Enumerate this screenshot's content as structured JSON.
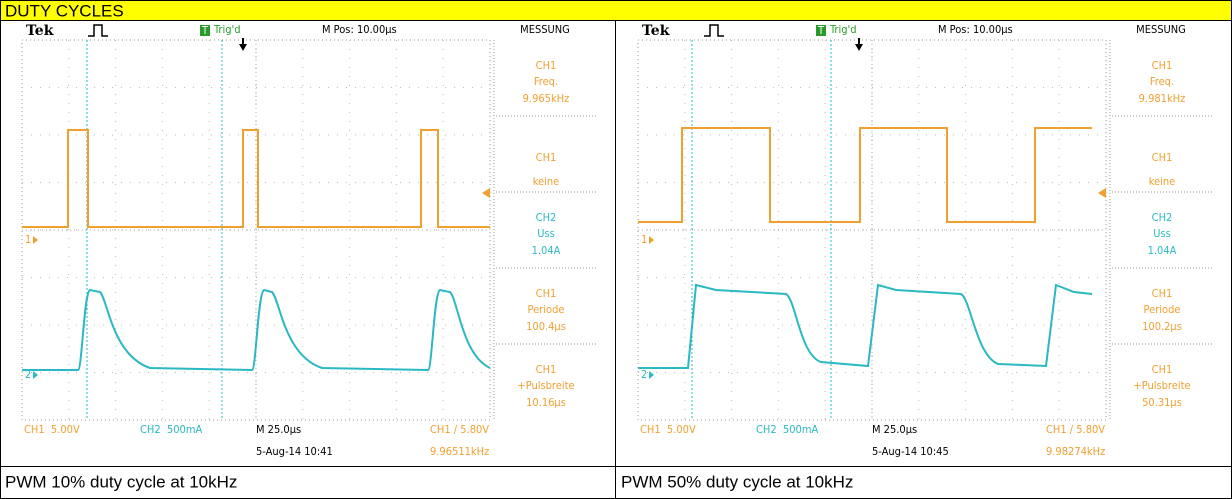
{
  "header": {
    "title": "DUTY CYCLES"
  },
  "panels": [
    {
      "scope": {
        "brand": "Tek",
        "trigger_icon": "T",
        "trigger_status": "Trig'd",
        "position": "M Pos: 10.00µs",
        "menu": "MESSUNG",
        "ch1_marker": "1",
        "ch2_marker": "2",
        "measurements": [
          {
            "channel": "CH1",
            "label": "Freq.",
            "value": "9.965kHz"
          },
          {
            "channel": "CH1",
            "label": "keine"
          },
          {
            "channel": "CH2",
            "label": "Uss",
            "value": "1.04A"
          },
          {
            "channel": "CH1",
            "label": "Periode",
            "value": "100.4µs"
          },
          {
            "channel": "CH1",
            "label": "+Pulsbreite",
            "value": "10.16µs"
          }
        ],
        "ch1_scale": "CH1  5.00V",
        "ch2_scale": "CH2  500mA",
        "timebase": "M 25.0µs",
        "trigger": "CH1 ∕ 5.80V",
        "date": "5-Aug-14 10:41",
        "frequency": "9.96511kHz"
      },
      "caption": "PWM 10% duty cycle at 10kHz"
    },
    {
      "scope": {
        "brand": "Tek",
        "trigger_icon": "T",
        "trigger_status": "Trig'd",
        "position": "M Pos: 10.00µs",
        "menu": "MESSUNG",
        "ch1_marker": "1",
        "ch2_marker": "2",
        "measurements": [
          {
            "channel": "CH1",
            "label": "Freq.",
            "value": "9.981kHz"
          },
          {
            "channel": "CH1",
            "label": "keine"
          },
          {
            "channel": "CH2",
            "label": "Uss",
            "value": "1.04A"
          },
          {
            "channel": "CH1",
            "label": "Periode",
            "value": "100.2µs"
          },
          {
            "channel": "CH1",
            "label": "+Pulsbreite",
            "value": "50.31µs"
          }
        ],
        "ch1_scale": "CH1  5.00V",
        "ch2_scale": "CH2  500mA",
        "timebase": "M 25.0µs",
        "trigger": "CH1 ∕ 5.80V",
        "date": "5-Aug-14 10:45",
        "frequency": "9.98274kHz"
      },
      "caption": "PWM 50% duty cycle at 10kHz"
    }
  ]
}
